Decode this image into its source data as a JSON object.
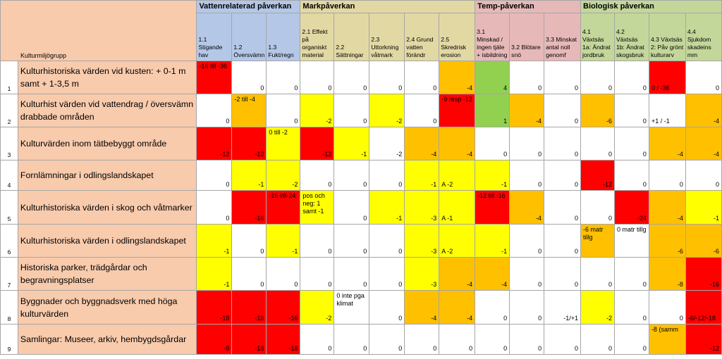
{
  "header": {
    "corner_label": "Kulturmiljögrupp",
    "groups": [
      {
        "label": "Vattenrelaterad påverkan",
        "color": "#b4c7e7"
      },
      {
        "label": "Markpåverkan",
        "color": "#e2d8a4"
      },
      {
        "label": "Temp-påverkan",
        "color": "#e6b9b8"
      },
      {
        "label": "Biologisk påverkan",
        "color": "#c4d79b"
      }
    ],
    "columns": [
      "1.1 Stigande hav",
      "1.2 Översvämn",
      "1.3 Fukt/regn",
      "2.1 Effekt på organiskt material",
      "2.2 Sättningar",
      "2.3 Uttorkning våtmark",
      "2.4 Grund vatten förändr",
      "2.5 Skredrisk erosion",
      "3.1 Minskad / ingen tjäle + isbildning",
      "3.2 Blötare snö",
      "3.3 Minskat antal noll genomf",
      "4.1 Växtsäs 1a: Ändrat jordbruk",
      "4.2 Växtsäs 1b: Ändrat skogsbruk",
      "4.3 Växtsäs 2: Påv grönt kulturarv",
      "4.4 Sjukdom skadeins mm"
    ]
  },
  "legend_colors": {
    "red": "#ff0000",
    "orange": "#ffc000",
    "yellow": "#ffff00",
    "green": "#92d050",
    "white": "#ffffff",
    "row_label_bg": "#f8cbad"
  },
  "rows": [
    {
      "num": "1",
      "label": "Kulturhistoriska värden vid kusten: + 0-1 m samt + 1-3,5 m",
      "cells": [
        {
          "v": "-16 till -36",
          "c": "red"
        },
        {
          "v": "0",
          "c": "white"
        },
        {
          "v": "0",
          "c": "white"
        },
        {
          "v": "0",
          "c": "white"
        },
        {
          "v": "0",
          "c": "white"
        },
        {
          "v": "0",
          "c": "white"
        },
        {
          "v": "0",
          "c": "white"
        },
        {
          "v": "-4",
          "c": "orange"
        },
        {
          "v": "4",
          "c": "green"
        },
        {
          "v": "0",
          "c": "white"
        },
        {
          "v": "0",
          "c": "white"
        },
        {
          "v": "0",
          "c": "white"
        },
        {
          "v": "0",
          "c": "white"
        },
        {
          "v": "0 / -36",
          "c": "red"
        },
        {
          "v": "0",
          "c": "white"
        }
      ]
    },
    {
      "num": "2",
      "label": "Kulturhist värden vid vattendrag / översvämn drabbade områden",
      "cells": [
        {
          "v": "0",
          "c": "white"
        },
        {
          "v": "-2 till -4",
          "c": "orange"
        },
        {
          "v": "0",
          "c": "white"
        },
        {
          "v": "-2",
          "c": "yellow"
        },
        {
          "v": "0",
          "c": "white"
        },
        {
          "v": "-2",
          "c": "yellow"
        },
        {
          "v": "0",
          "c": "white"
        },
        {
          "v": "-9 resp -12",
          "c": "red"
        },
        {
          "v": "1",
          "c": "green"
        },
        {
          "v": "-4",
          "c": "orange"
        },
        {
          "v": "0",
          "c": "white"
        },
        {
          "v": "-6",
          "c": "orange"
        },
        {
          "v": "0",
          "c": "white"
        },
        {
          "v": "+1 / -1",
          "c": "white"
        },
        {
          "v": "-4",
          "c": "orange"
        }
      ]
    },
    {
      "num": "3",
      "label": "Kulturvärden inom tätbebyggt område",
      "cells": [
        {
          "v": "-12",
          "c": "red"
        },
        {
          "v": "-12",
          "c": "red"
        },
        {
          "v": "0 till -2",
          "c": "yellow"
        },
        {
          "v": "-12",
          "c": "red"
        },
        {
          "v": "-1",
          "c": "yellow"
        },
        {
          "v": "-2",
          "c": "white"
        },
        {
          "v": "-4",
          "c": "orange"
        },
        {
          "v": "-4",
          "c": "orange"
        },
        {
          "v": "0",
          "c": "white"
        },
        {
          "v": "0",
          "c": "white"
        },
        {
          "v": "0",
          "c": "white"
        },
        {
          "v": "0",
          "c": "white"
        },
        {
          "v": "0",
          "c": "white"
        },
        {
          "v": "-4",
          "c": "orange"
        },
        {
          "v": "-4",
          "c": "orange"
        }
      ]
    },
    {
      "num": "4",
      "label": "Fornlämningar i odlingslandskapet",
      "cells": [
        {
          "v": "0",
          "c": "white"
        },
        {
          "v": "-1",
          "c": "yellow"
        },
        {
          "v": "-2",
          "c": "yellow"
        },
        {
          "v": "0",
          "c": "white"
        },
        {
          "v": "0",
          "c": "white"
        },
        {
          "v": "0",
          "c": "white"
        },
        {
          "v": "-1",
          "c": "yellow"
        },
        {
          "v": "A -2",
          "c": "yellow"
        },
        {
          "v": "-1",
          "c": "yellow"
        },
        {
          "v": "0",
          "c": "white"
        },
        {
          "v": "0",
          "c": "white"
        },
        {
          "v": "-12",
          "c": "red"
        },
        {
          "v": "0",
          "c": "white"
        },
        {
          "v": "0",
          "c": "white"
        },
        {
          "v": "0",
          "c": "white"
        }
      ]
    },
    {
      "num": "5",
      "label": "Kulturhistoriska värden i skog och våtmarker",
      "cells": [
        {
          "v": "0",
          "c": "white"
        },
        {
          "v": "-16",
          "c": "red"
        },
        {
          "v": "-16 l/8-24",
          "c": "red"
        },
        {
          "v": "pos och neg: 1 samt -1",
          "c": "yellow"
        },
        {
          "v": "0",
          "c": "white"
        },
        {
          "v": "-1",
          "c": "yellow"
        },
        {
          "v": "-3",
          "c": "yellow"
        },
        {
          "v": "A -1",
          "c": "yellow"
        },
        {
          "v": "-12 till -16",
          "c": "red"
        },
        {
          "v": "-4",
          "c": "orange"
        },
        {
          "v": "0",
          "c": "white"
        },
        {
          "v": "0",
          "c": "white"
        },
        {
          "v": "-24",
          "c": "red"
        },
        {
          "v": "-4",
          "c": "orange"
        },
        {
          "v": "-1",
          "c": "yellow"
        }
      ]
    },
    {
      "num": "6",
      "label": "Kulturhistoriska värden i odlingslandskapet",
      "cells": [
        {
          "v": "-1",
          "c": "yellow"
        },
        {
          "v": "0",
          "c": "white"
        },
        {
          "v": "-1",
          "c": "yellow"
        },
        {
          "v": "0",
          "c": "white"
        },
        {
          "v": "0",
          "c": "white"
        },
        {
          "v": "0",
          "c": "white"
        },
        {
          "v": "-3",
          "c": "yellow"
        },
        {
          "v": "A -2",
          "c": "yellow"
        },
        {
          "v": "-1",
          "c": "yellow"
        },
        {
          "v": "0",
          "c": "white"
        },
        {
          "v": "0",
          "c": "white"
        },
        {
          "v": "-6 matr tillg",
          "c": "orange"
        },
        {
          "v": "0 matr tillg",
          "c": "white"
        },
        {
          "v": "-6",
          "c": "orange"
        },
        {
          "v": "-6",
          "c": "orange"
        }
      ]
    },
    {
      "num": "7",
      "label": "Historiska parker, trädgårdar och begravningsplatser",
      "cells": [
        {
          "v": "-1",
          "c": "yellow"
        },
        {
          "v": "0",
          "c": "white"
        },
        {
          "v": "0",
          "c": "white"
        },
        {
          "v": "0",
          "c": "white"
        },
        {
          "v": "0",
          "c": "white"
        },
        {
          "v": "0",
          "c": "white"
        },
        {
          "v": "-3",
          "c": "yellow"
        },
        {
          "v": "-4",
          "c": "orange"
        },
        {
          "v": "-4",
          "c": "orange"
        },
        {
          "v": "0",
          "c": "white"
        },
        {
          "v": "0",
          "c": "white"
        },
        {
          "v": "0",
          "c": "white"
        },
        {
          "v": "0",
          "c": "white"
        },
        {
          "v": "-8",
          "c": "orange"
        },
        {
          "v": "-16",
          "c": "red"
        }
      ]
    },
    {
      "num": "8",
      "label": "Byggnader och byggnadsverk med höga kulturvärden",
      "cells": [
        {
          "v": "-18",
          "c": "red"
        },
        {
          "v": "-18",
          "c": "red"
        },
        {
          "v": "-16",
          "c": "red"
        },
        {
          "v": "-2",
          "c": "yellow"
        },
        {
          "v": "0 inte pga klimat",
          "c": "white"
        },
        {
          "v": "0",
          "c": "white"
        },
        {
          "v": "-4",
          "c": "orange"
        },
        {
          "v": "-4",
          "c": "orange"
        },
        {
          "v": "0",
          "c": "white"
        },
        {
          "v": "0",
          "c": "white"
        },
        {
          "v": "-1/+1",
          "c": "white"
        },
        {
          "v": "-2",
          "c": "yellow"
        },
        {
          "v": "0",
          "c": "white"
        },
        {
          "v": "0",
          "c": "white"
        },
        {
          "v": "-6/-12/-18",
          "c": "red"
        }
      ]
    },
    {
      "num": "9",
      "label": "Samlingar: Museer, arkiv, hembygdsgårdar",
      "cells": [
        {
          "v": "-9",
          "c": "red"
        },
        {
          "v": "-18",
          "c": "red"
        },
        {
          "v": "-18",
          "c": "red"
        },
        {
          "v": "0",
          "c": "white"
        },
        {
          "v": "0",
          "c": "white"
        },
        {
          "v": "0",
          "c": "white"
        },
        {
          "v": "0",
          "c": "white"
        },
        {
          "v": "0",
          "c": "white"
        },
        {
          "v": "0",
          "c": "white"
        },
        {
          "v": "0",
          "c": "white"
        },
        {
          "v": "0",
          "c": "white"
        },
        {
          "v": "0",
          "c": "white"
        },
        {
          "v": "0",
          "c": "white"
        },
        {
          "v": "-8 (samm",
          "c": "orange"
        },
        {
          "v": "-12",
          "c": "red"
        }
      ]
    }
  ]
}
